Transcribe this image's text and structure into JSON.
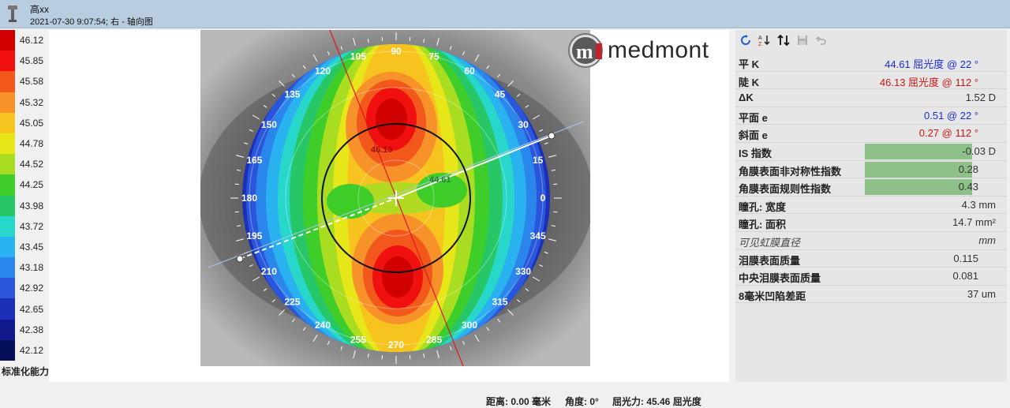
{
  "window": {
    "name": "高xx",
    "subtitle": "2021-07-30    9:07:54; 右 - 轴向图"
  },
  "legend": {
    "items": [
      {
        "value": "46.12",
        "color": "#d00000"
      },
      {
        "value": "45.85",
        "color": "#f01010"
      },
      {
        "value": "45.58",
        "color": "#f2581c"
      },
      {
        "value": "45.32",
        "color": "#f7922b"
      },
      {
        "value": "45.05",
        "color": "#f7c31f"
      },
      {
        "value": "44.78",
        "color": "#e6e619"
      },
      {
        "value": "44.52",
        "color": "#a8dd22"
      },
      {
        "value": "44.25",
        "color": "#3fcd2a"
      },
      {
        "value": "43.98",
        "color": "#27c768"
      },
      {
        "value": "43.72",
        "color": "#27d7c9"
      },
      {
        "value": "43.45",
        "color": "#2ab2f0"
      },
      {
        "value": "43.18",
        "color": "#2b86ec"
      },
      {
        "value": "42.92",
        "color": "#2a56dc"
      },
      {
        "value": "42.65",
        "color": "#1b2fb8"
      },
      {
        "value": "42.38",
        "color": "#101a8a"
      },
      {
        "value": "42.12",
        "color": "#06105a"
      }
    ],
    "caption": "标准化能力"
  },
  "map": {
    "angles": [
      "90",
      "75",
      "60",
      "45",
      "30",
      "15",
      "0",
      "345",
      "330",
      "315",
      "300",
      "285",
      "270",
      "255",
      "240",
      "225",
      "210",
      "195",
      "180",
      "165",
      "150",
      "135",
      "120",
      "105"
    ],
    "steep_value": "46.13",
    "flat_value": "44.61",
    "status_distance": "距离: 0.00 毫米",
    "status_angle": "角度: 0°",
    "status_power": "屈光力: 45.46 屈光度"
  },
  "logo": {
    "mark": "m",
    "text": "medmont"
  },
  "toolbar": {
    "icons": [
      "refresh-icon",
      "sort-az-icon",
      "sort-arrows-icon",
      "save-icon",
      "undo-icon"
    ]
  },
  "measurements": [
    {
      "label": "平 K",
      "value": "44.61 屈光度 @  22 °",
      "color": "blue",
      "label_color": "blue"
    },
    {
      "label": "陡 K",
      "value": "46.13 屈光度 @ 112 °",
      "color": "red",
      "label_color": "red"
    },
    {
      "label": "ΔK",
      "value": "1.52 D",
      "color": "dark",
      "label_color": "dark"
    },
    {
      "label": "平面 e",
      "value": "0.51 @  22 °",
      "color": "blue",
      "label_color": "blue"
    },
    {
      "label": "斜面 e",
      "value": "0.27 @ 112 °",
      "color": "red",
      "label_color": "red"
    },
    {
      "label": "IS 指数",
      "value": "-0.03 D",
      "color": "dark",
      "label_color": "dark",
      "highlight": true
    },
    {
      "label": "角膜表面非对称性指数",
      "value": "0.28",
      "color": "dark",
      "label_color": "dark",
      "highlight": true
    },
    {
      "label": "角膜表面规则性指数",
      "value": "0.43",
      "color": "dark",
      "label_color": "dark",
      "highlight": true
    },
    {
      "label": "瞳孔: 宽度",
      "value": "4.3 mm",
      "color": "dark",
      "label_color": "dark"
    },
    {
      "label": "瞳孔: 面积",
      "value": "14.7 mm²",
      "color": "dark",
      "label_color": "dark"
    },
    {
      "label": "可见虹膜直径",
      "value": "mm",
      "color": "dark",
      "label_color": "italic"
    },
    {
      "label": "泪膜表面质量",
      "value": "0.115",
      "color": "dark",
      "label_color": "dark"
    },
    {
      "label": "中央泪膜表面质量",
      "value": "0.081",
      "color": "dark",
      "label_color": "dark"
    },
    {
      "label": "8毫米凹陷差距",
      "value": "37 um",
      "color": "dark",
      "label_color": "dark"
    }
  ]
}
